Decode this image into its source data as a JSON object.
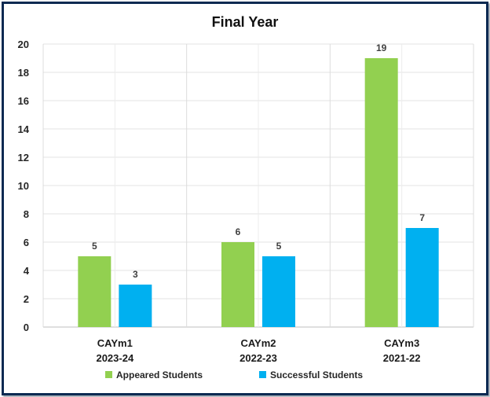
{
  "chart_data": {
    "type": "bar",
    "title": "Final Year",
    "categories": [
      [
        "CAYm1",
        "2023-24"
      ],
      [
        "CAYm2",
        "2022-23"
      ],
      [
        "CAYm3",
        "2021-22"
      ]
    ],
    "series": [
      {
        "name": "Appeared Students",
        "values": [
          5,
          6,
          19
        ],
        "color": "#92d050"
      },
      {
        "name": "Successful Students",
        "values": [
          3,
          5,
          7
        ],
        "color": "#00b0f0"
      }
    ],
    "ylim": [
      0,
      20
    ],
    "yticks": [
      "0",
      "2",
      "4",
      "6",
      "8",
      "10",
      "12",
      "14",
      "16",
      "18",
      "20"
    ],
    "data_labels": true,
    "grid": true,
    "legend_position": "bottom"
  }
}
